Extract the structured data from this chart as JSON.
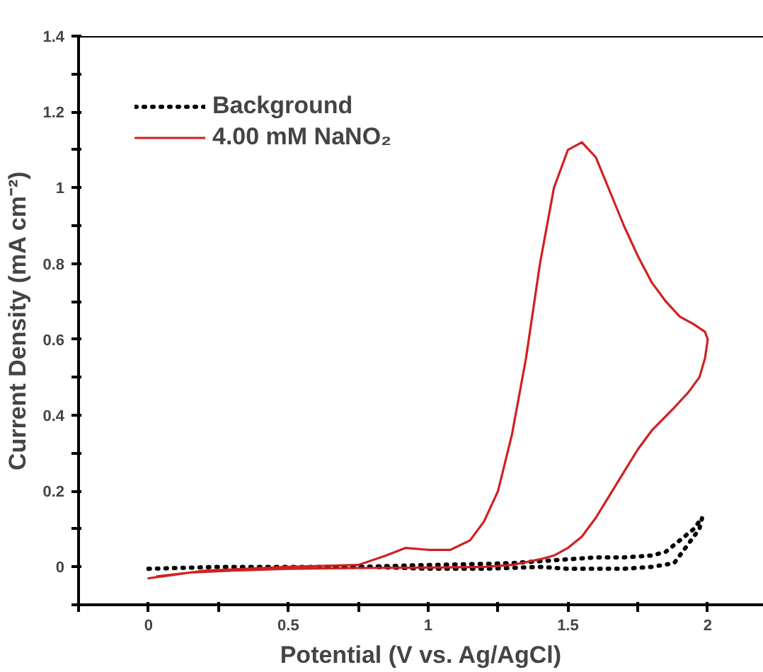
{
  "chart_data": {
    "type": "line",
    "xlabel": "Potential (V vs. Ag/AgCl)",
    "ylabel": "Current Density (mA cm⁻²)",
    "xlim": [
      -0.25,
      2.2
    ],
    "ylim": [
      -0.1,
      1.4
    ],
    "xticks": [
      {
        "value": -0.25,
        "label": null
      },
      0,
      {
        "value": 0.25,
        "label": null
      },
      0.5,
      {
        "value": 0.75,
        "label": null
      },
      1,
      {
        "value": 1.25,
        "label": null
      },
      1.5,
      {
        "value": 1.75,
        "label": null
      },
      2
    ],
    "yticks": [
      {
        "value": -0.1,
        "label": null
      },
      0,
      {
        "value": 0.1,
        "label": null
      },
      0.2,
      {
        "value": 0.3,
        "label": null
      },
      0.4,
      {
        "value": 0.5,
        "label": null
      },
      0.6,
      {
        "value": 0.7,
        "label": null
      },
      0.8,
      {
        "value": 0.9,
        "label": null
      },
      1,
      {
        "value": 1.1,
        "label": null
      },
      1.2,
      {
        "value": 1.3,
        "label": null
      },
      1.4
    ],
    "grid": false,
    "legend": "top left",
    "marker": "none",
    "series": [
      {
        "name": "Background",
        "color": "#000000",
        "line_style": "dotted",
        "x": [
          0,
          0.25,
          0.5,
          0.75,
          1.0,
          1.2,
          1.3,
          1.4,
          1.5,
          1.6,
          1.7,
          1.8,
          1.85,
          1.9,
          1.95,
          1.98,
          1.97,
          1.93,
          1.88,
          1.8,
          1.7,
          1.6,
          1.5,
          1.4,
          1.2,
          1.0,
          0.8
        ],
        "values": [
          -0.005,
          0,
          0,
          0,
          0.005,
          0.008,
          0.01,
          0.015,
          0.02,
          0.025,
          0.025,
          0.03,
          0.04,
          0.07,
          0.1,
          0.13,
          0.1,
          0.06,
          0.01,
          0,
          -0.005,
          -0.005,
          -0.005,
          0,
          -0.005,
          -0.005,
          0
        ]
      },
      {
        "name": "4.00 mM NaNO₂",
        "color": "#d02020",
        "line_style": "solid",
        "x": [
          0,
          0.1,
          0.2,
          0.35,
          0.5,
          0.75,
          0.85,
          0.92,
          1.0,
          1.08,
          1.15,
          1.2,
          1.25,
          1.3,
          1.35,
          1.4,
          1.45,
          1.5,
          1.55,
          1.6,
          1.65,
          1.7,
          1.75,
          1.8,
          1.85,
          1.9,
          1.95,
          1.99,
          2.0,
          1.99,
          1.97,
          1.93,
          1.88,
          1.8,
          1.75,
          1.7,
          1.65,
          1.6,
          1.55,
          1.5,
          1.45,
          1.4,
          1.3,
          1.2,
          1.0,
          0.75,
          0.5,
          0.3,
          0.15,
          0.03
        ],
        "values": [
          -0.03,
          -0.02,
          -0.01,
          -0.005,
          0,
          0.005,
          0.03,
          0.05,
          0.045,
          0.045,
          0.07,
          0.12,
          0.2,
          0.35,
          0.55,
          0.8,
          1.0,
          1.1,
          1.12,
          1.08,
          0.99,
          0.9,
          0.82,
          0.75,
          0.7,
          0.66,
          0.64,
          0.62,
          0.6,
          0.55,
          0.5,
          0.46,
          0.42,
          0.36,
          0.31,
          0.25,
          0.19,
          0.13,
          0.08,
          0.05,
          0.03,
          0.02,
          0.005,
          0,
          -0.002,
          -0.003,
          -0.005,
          -0.01,
          -0.015,
          -0.025
        ]
      }
    ]
  }
}
